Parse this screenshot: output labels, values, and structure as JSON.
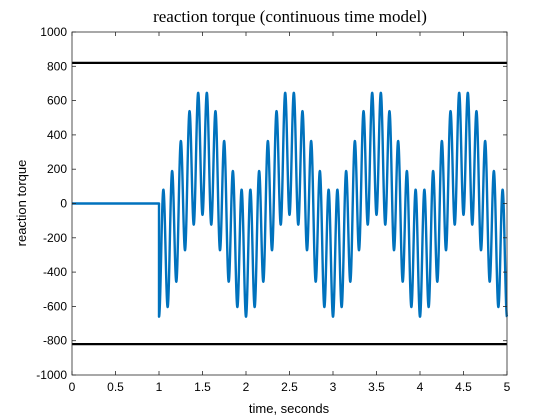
{
  "chart_data": {
    "type": "line",
    "title": "reaction torque (continuous time model)",
    "xlabel": "time, seconds",
    "ylabel": "reaction torque",
    "xlim": [
      0,
      5
    ],
    "ylim": [
      -1000,
      1000
    ],
    "xticks": [
      0,
      0.5,
      1,
      1.5,
      2,
      2.5,
      3,
      3.5,
      4,
      4.5,
      5
    ],
    "yticks": [
      -1000,
      -800,
      -600,
      -400,
      -200,
      0,
      200,
      400,
      600,
      800,
      1000
    ],
    "xtick_labels": [
      "0",
      "0.5",
      "1",
      "1.5",
      "2",
      "2.5",
      "3",
      "3.5",
      "4",
      "4.5",
      "5"
    ],
    "ytick_labels": [
      "-1000",
      "-800",
      "-600",
      "-400",
      "-200",
      "0",
      "200",
      "400",
      "600",
      "800",
      "1000"
    ],
    "grid": false,
    "series": [
      {
        "color": "#0072BD",
        "description_model": "0 for t<1; for t>=1: -A*cos(2*pi*f_fast*(t-1)) * (0.5 + 0.5*cos(2*pi*f_env*(t-1)))-ish oscillation between about -660 and 660",
        "segments": [
          {
            "x": [
              0,
              1
            ],
            "y": [
              0,
              0
            ]
          }
        ],
        "oscillation": {
          "t_start": 1,
          "t_end": 5,
          "fast_freq_hz": 10,
          "envelope_freq_hz": 1,
          "peak": 660,
          "baseline_center": 0
        }
      },
      {
        "color": "#000000",
        "x": [
          0,
          5
        ],
        "y": [
          820,
          820
        ]
      },
      {
        "color": "#000000",
        "x": [
          0,
          5
        ],
        "y": [
          -820,
          -820
        ]
      }
    ]
  }
}
